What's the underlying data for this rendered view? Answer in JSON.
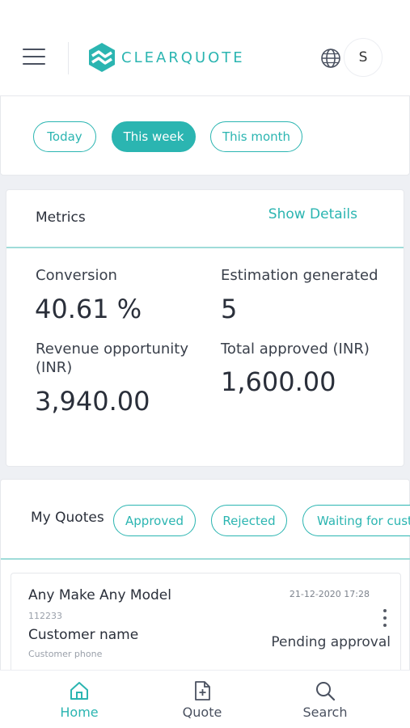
{
  "header": {
    "brand": "CLEARQUOTE",
    "avatar_initial": "S",
    "icons": [
      "hamburger-menu-icon",
      "clearquote-logo",
      "globe-icon"
    ]
  },
  "filters": {
    "options": [
      "Today",
      "This week",
      "This month"
    ],
    "selected": "This week"
  },
  "metrics": {
    "title": "Metrics",
    "show_details": "Show Details",
    "conversion_label": "Conversion",
    "conversion_value": "40.61 %",
    "estimation_label": "Estimation generated",
    "estimation_value": "5",
    "revenue_label_line1": "Revenue opportunity",
    "revenue_label_line2": "(INR)",
    "revenue_value": "3,940.00",
    "approved_label": "Total approved (INR)",
    "approved_value": "1,600.00"
  },
  "quotes": {
    "title": "My Quotes",
    "tabs": [
      "Approved",
      "Rejected",
      "Waiting for custo"
    ],
    "items": [
      {
        "vehicle": "Any Make Any Model",
        "id": "112233",
        "customer": "Customer name",
        "phone": "Customer phone",
        "date": "21-12-2020 17:28",
        "status": "Pending approval"
      }
    ]
  },
  "nav": {
    "items": [
      {
        "label": "Home",
        "icon": "home-icon"
      },
      {
        "label": "Quote",
        "icon": "new-quote-icon"
      },
      {
        "label": "Search",
        "icon": "search-icon"
      }
    ],
    "active": "Home"
  },
  "colors": {
    "accent": "#2bb5b1",
    "text": "#2a2f3a",
    "background": "#eef0f4"
  }
}
